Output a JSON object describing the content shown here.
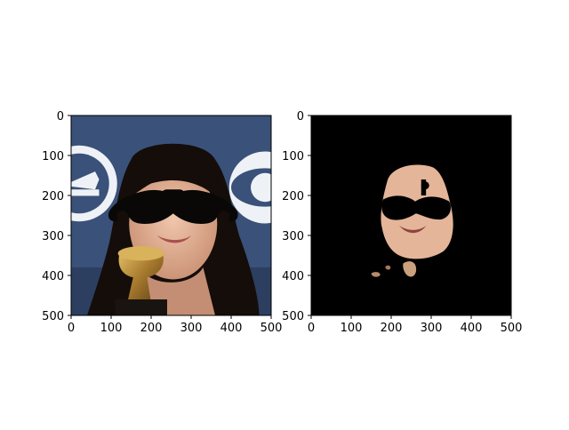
{
  "figure": {
    "background": "#ffffff",
    "axes_frame_color": "#000000",
    "tick_label_color": "#000000"
  },
  "chart_data": [
    {
      "type": "image",
      "title": "",
      "xlabel": "",
      "ylabel": "",
      "xlim": [
        0,
        500
      ],
      "ylim": [
        500,
        0
      ],
      "xticks": [
        0,
        100,
        200,
        300,
        400,
        500
      ],
      "yticks": [
        0,
        100,
        200,
        300,
        400,
        500
      ],
      "grid": false,
      "image_content": "face-photo-with-mustache",
      "colors": {
        "background_blue": "#3a5179",
        "hair": "#140d09",
        "skin": "#e7b69b",
        "mustache": "#0a0707",
        "trophy_gold": "#b98a3a",
        "logo_white": "#eef2f6"
      }
    },
    {
      "type": "image",
      "title": "",
      "xlabel": "",
      "ylabel": "",
      "xlim": [
        0,
        500
      ],
      "ylim": [
        500,
        0
      ],
      "xticks": [
        0,
        100,
        200,
        300,
        400,
        500
      ],
      "yticks": [
        0,
        100,
        200,
        300,
        400,
        500
      ],
      "grid": false,
      "image_content": "skin-mask-on-black",
      "colors": {
        "background": "#000000",
        "skin": "#e4b598",
        "mustache": "#000000"
      }
    }
  ]
}
